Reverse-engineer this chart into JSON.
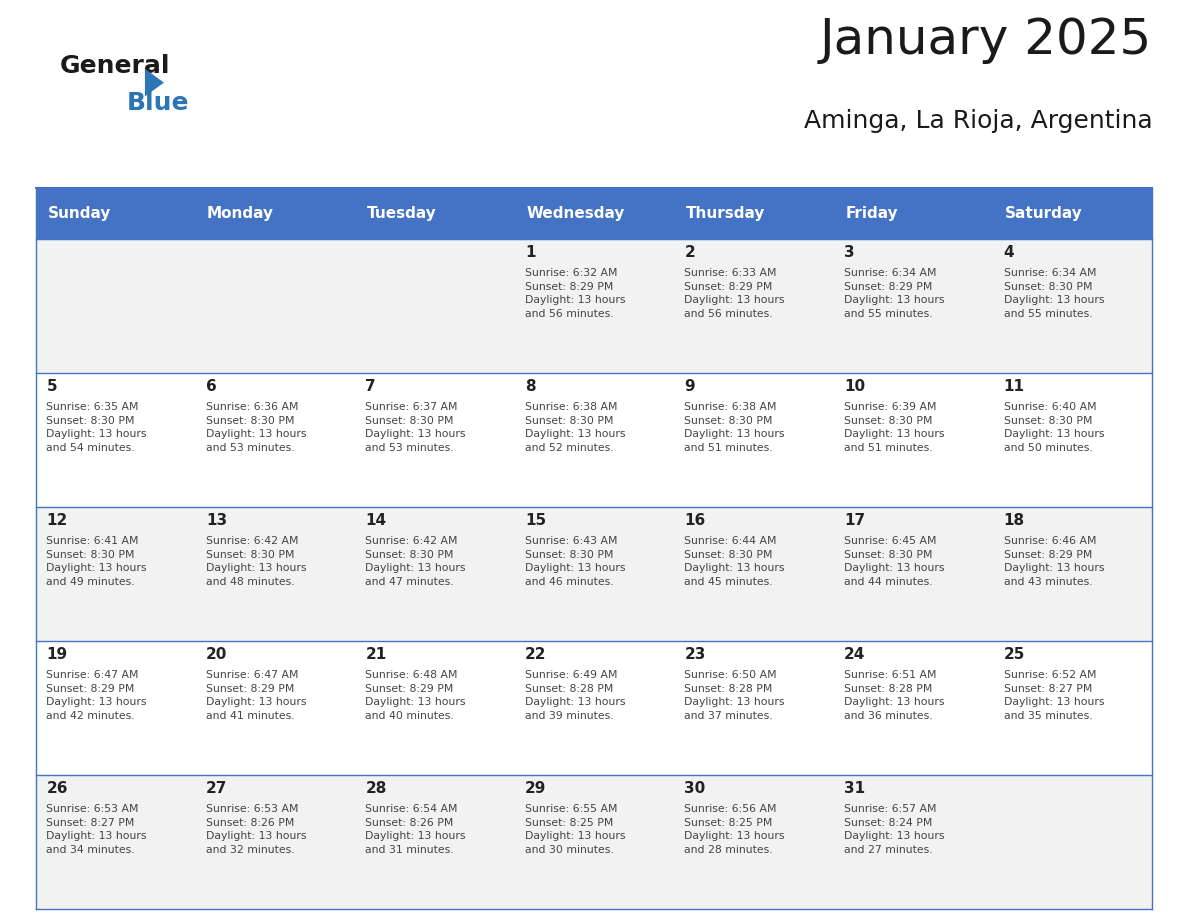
{
  "title": "January 2025",
  "subtitle": "Aminga, La Rioja, Argentina",
  "days_of_week": [
    "Sunday",
    "Monday",
    "Tuesday",
    "Wednesday",
    "Thursday",
    "Friday",
    "Saturday"
  ],
  "header_bg": "#4472C4",
  "header_text": "#FFFFFF",
  "row_bg_even": "#F2F2F2",
  "row_bg_odd": "#FFFFFF",
  "cell_text_color": "#333333",
  "day_num_color": "#1a1a1a",
  "border_color": "#4472C4",
  "calendar": [
    [
      {
        "day": null,
        "info": ""
      },
      {
        "day": null,
        "info": ""
      },
      {
        "day": null,
        "info": ""
      },
      {
        "day": 1,
        "info": "Sunrise: 6:32 AM\nSunset: 8:29 PM\nDaylight: 13 hours\nand 56 minutes."
      },
      {
        "day": 2,
        "info": "Sunrise: 6:33 AM\nSunset: 8:29 PM\nDaylight: 13 hours\nand 56 minutes."
      },
      {
        "day": 3,
        "info": "Sunrise: 6:34 AM\nSunset: 8:29 PM\nDaylight: 13 hours\nand 55 minutes."
      },
      {
        "day": 4,
        "info": "Sunrise: 6:34 AM\nSunset: 8:30 PM\nDaylight: 13 hours\nand 55 minutes."
      }
    ],
    [
      {
        "day": 5,
        "info": "Sunrise: 6:35 AM\nSunset: 8:30 PM\nDaylight: 13 hours\nand 54 minutes."
      },
      {
        "day": 6,
        "info": "Sunrise: 6:36 AM\nSunset: 8:30 PM\nDaylight: 13 hours\nand 53 minutes."
      },
      {
        "day": 7,
        "info": "Sunrise: 6:37 AM\nSunset: 8:30 PM\nDaylight: 13 hours\nand 53 minutes."
      },
      {
        "day": 8,
        "info": "Sunrise: 6:38 AM\nSunset: 8:30 PM\nDaylight: 13 hours\nand 52 minutes."
      },
      {
        "day": 9,
        "info": "Sunrise: 6:38 AM\nSunset: 8:30 PM\nDaylight: 13 hours\nand 51 minutes."
      },
      {
        "day": 10,
        "info": "Sunrise: 6:39 AM\nSunset: 8:30 PM\nDaylight: 13 hours\nand 51 minutes."
      },
      {
        "day": 11,
        "info": "Sunrise: 6:40 AM\nSunset: 8:30 PM\nDaylight: 13 hours\nand 50 minutes."
      }
    ],
    [
      {
        "day": 12,
        "info": "Sunrise: 6:41 AM\nSunset: 8:30 PM\nDaylight: 13 hours\nand 49 minutes."
      },
      {
        "day": 13,
        "info": "Sunrise: 6:42 AM\nSunset: 8:30 PM\nDaylight: 13 hours\nand 48 minutes."
      },
      {
        "day": 14,
        "info": "Sunrise: 6:42 AM\nSunset: 8:30 PM\nDaylight: 13 hours\nand 47 minutes."
      },
      {
        "day": 15,
        "info": "Sunrise: 6:43 AM\nSunset: 8:30 PM\nDaylight: 13 hours\nand 46 minutes."
      },
      {
        "day": 16,
        "info": "Sunrise: 6:44 AM\nSunset: 8:30 PM\nDaylight: 13 hours\nand 45 minutes."
      },
      {
        "day": 17,
        "info": "Sunrise: 6:45 AM\nSunset: 8:30 PM\nDaylight: 13 hours\nand 44 minutes."
      },
      {
        "day": 18,
        "info": "Sunrise: 6:46 AM\nSunset: 8:29 PM\nDaylight: 13 hours\nand 43 minutes."
      }
    ],
    [
      {
        "day": 19,
        "info": "Sunrise: 6:47 AM\nSunset: 8:29 PM\nDaylight: 13 hours\nand 42 minutes."
      },
      {
        "day": 20,
        "info": "Sunrise: 6:47 AM\nSunset: 8:29 PM\nDaylight: 13 hours\nand 41 minutes."
      },
      {
        "day": 21,
        "info": "Sunrise: 6:48 AM\nSunset: 8:29 PM\nDaylight: 13 hours\nand 40 minutes."
      },
      {
        "day": 22,
        "info": "Sunrise: 6:49 AM\nSunset: 8:28 PM\nDaylight: 13 hours\nand 39 minutes."
      },
      {
        "day": 23,
        "info": "Sunrise: 6:50 AM\nSunset: 8:28 PM\nDaylight: 13 hours\nand 37 minutes."
      },
      {
        "day": 24,
        "info": "Sunrise: 6:51 AM\nSunset: 8:28 PM\nDaylight: 13 hours\nand 36 minutes."
      },
      {
        "day": 25,
        "info": "Sunrise: 6:52 AM\nSunset: 8:27 PM\nDaylight: 13 hours\nand 35 minutes."
      }
    ],
    [
      {
        "day": 26,
        "info": "Sunrise: 6:53 AM\nSunset: 8:27 PM\nDaylight: 13 hours\nand 34 minutes."
      },
      {
        "day": 27,
        "info": "Sunrise: 6:53 AM\nSunset: 8:26 PM\nDaylight: 13 hours\nand 32 minutes."
      },
      {
        "day": 28,
        "info": "Sunrise: 6:54 AM\nSunset: 8:26 PM\nDaylight: 13 hours\nand 31 minutes."
      },
      {
        "day": 29,
        "info": "Sunrise: 6:55 AM\nSunset: 8:25 PM\nDaylight: 13 hours\nand 30 minutes."
      },
      {
        "day": 30,
        "info": "Sunrise: 6:56 AM\nSunset: 8:25 PM\nDaylight: 13 hours\nand 28 minutes."
      },
      {
        "day": 31,
        "info": "Sunrise: 6:57 AM\nSunset: 8:24 PM\nDaylight: 13 hours\nand 27 minutes."
      },
      {
        "day": null,
        "info": ""
      }
    ]
  ],
  "logo_general_color": "#1a1a1a",
  "logo_blue_color": "#2E75B6",
  "logo_triangle_color": "#2E75B6"
}
